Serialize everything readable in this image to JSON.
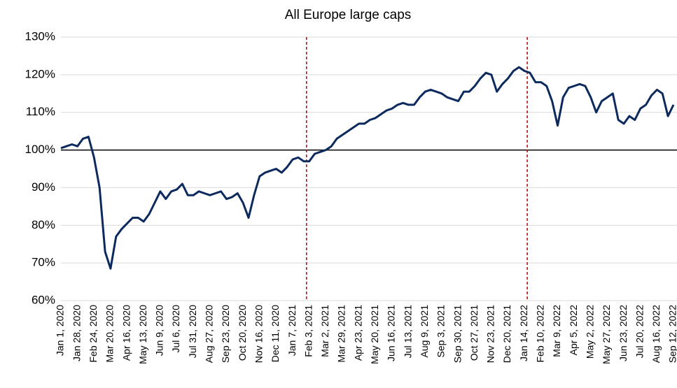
{
  "chart_data": {
    "type": "line",
    "title": "All Europe large caps",
    "categories": [
      "Jan 1, 2020",
      null,
      null,
      "Jan 28, 2020",
      null,
      null,
      "Feb 24, 2020",
      null,
      null,
      "Mar 20, 2020",
      null,
      null,
      "Apr 16, 2020",
      null,
      null,
      "May 13, 2020",
      null,
      null,
      "Jun 9, 2020",
      null,
      null,
      "Jul 6, 2020",
      null,
      null,
      "Jul 31, 2020",
      null,
      null,
      "Aug 27, 2020",
      null,
      null,
      "Sep 23, 2020",
      null,
      null,
      "Oct 20, 2020",
      null,
      null,
      "Nov 16, 2020",
      null,
      null,
      "Dec 11, 2020",
      null,
      null,
      "Jan 7, 2021",
      null,
      null,
      "Feb 3, 2021",
      null,
      null,
      "Mar 2, 2021",
      null,
      null,
      "Mar 29, 2021",
      null,
      null,
      "Apr 23, 2021",
      null,
      null,
      "May 20, 2021",
      null,
      null,
      "Jun 16, 2021",
      null,
      null,
      "Jul 13, 2021",
      null,
      null,
      "Aug 9, 2021",
      null,
      null,
      "Sep 3, 2021",
      null,
      null,
      "Sep 30, 2021",
      null,
      null,
      "Oct 27, 2021",
      null,
      null,
      "Nov 23, 2021",
      null,
      null,
      "Dec 20, 2021",
      null,
      null,
      "Jan 14, 2022",
      null,
      null,
      "Feb 10, 2022",
      null,
      null,
      "Mar 9, 2022",
      null,
      null,
      "Apr 5, 2022",
      null,
      null,
      "May 2, 2022",
      null,
      null,
      "May 27, 2022",
      null,
      null,
      "Jun 23, 2022",
      null,
      null,
      "Jul 20, 2022",
      null,
      null,
      "Aug 16, 2022",
      null,
      null,
      "Sep 12, 2022"
    ],
    "series": [
      {
        "name": "All Europe large caps",
        "color": "#0d2a5e",
        "values": [
          100.5,
          101,
          101.5,
          101,
          103,
          103.5,
          98,
          90,
          73,
          68.5,
          77,
          79,
          80.5,
          82,
          82,
          81,
          83,
          86,
          89,
          87,
          89,
          89.5,
          91,
          88,
          88,
          89,
          88.5,
          88,
          88.5,
          89,
          87,
          87.5,
          88.5,
          86,
          82,
          88,
          93,
          94,
          94.5,
          95,
          94,
          95.5,
          97.5,
          98,
          97,
          97,
          99,
          99.5,
          100,
          101,
          103,
          104,
          105,
          106,
          107,
          107,
          108,
          108.5,
          109.5,
          110.5,
          111,
          112,
          112.5,
          112,
          112,
          114,
          115.5,
          116,
          115.5,
          115,
          114,
          113.5,
          113,
          115.5,
          115.5,
          117,
          119,
          120.5,
          120,
          115.5,
          117.5,
          119,
          121,
          122,
          121,
          120.5,
          118,
          118,
          117,
          113,
          106.5,
          114,
          116.5,
          117,
          117.5,
          117,
          114,
          110,
          113,
          114,
          115,
          108,
          107,
          109,
          108,
          111,
          112,
          114.5,
          116,
          115,
          109,
          112
        ]
      }
    ],
    "ylim": [
      60,
      130
    ],
    "yticks": [
      {
        "value": 60,
        "label": "60%"
      },
      {
        "value": 70,
        "label": "70%"
      },
      {
        "value": 80,
        "label": "80%"
      },
      {
        "value": 90,
        "label": "90%"
      },
      {
        "value": 100,
        "label": "100%"
      },
      {
        "value": 110,
        "label": "110%"
      },
      {
        "value": 120,
        "label": "120%"
      },
      {
        "value": 130,
        "label": "130%"
      }
    ],
    "grid": true,
    "reference_line": 100,
    "vertical_lines": [
      44.5,
      84.5
    ],
    "vertical_line_color": "#c00000"
  }
}
